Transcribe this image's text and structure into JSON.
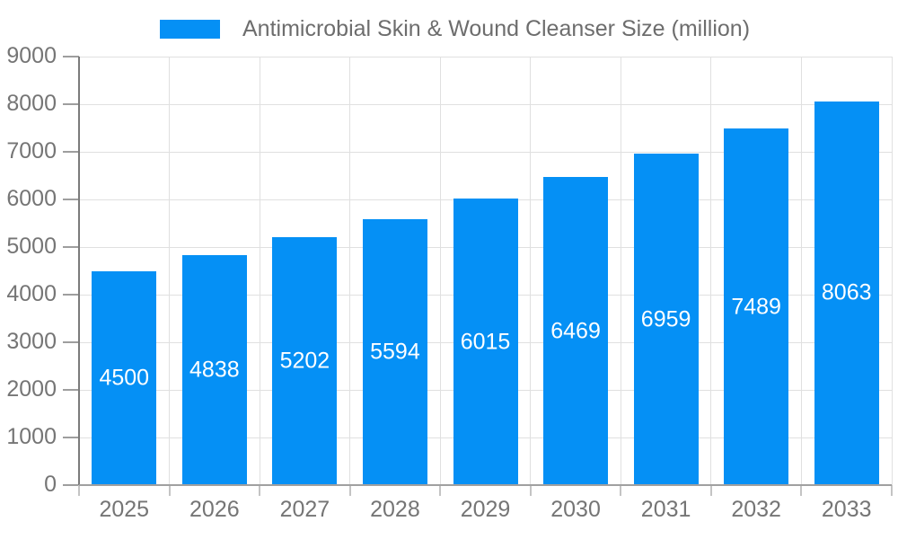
{
  "legend": {
    "label": "Antimicrobial Skin & Wound Cleanser Size (million)",
    "swatch_color": "#0590F5"
  },
  "chart_data": {
    "type": "bar",
    "title": "Antimicrobial Skin & Wound Cleanser Size (million)",
    "categories": [
      "2025",
      "2026",
      "2027",
      "2028",
      "2029",
      "2030",
      "2031",
      "2032",
      "2033"
    ],
    "values": [
      4500,
      4838,
      5202,
      5594,
      6015,
      6469,
      6959,
      7489,
      8063
    ],
    "xlabel": "",
    "ylabel": "",
    "ylim": [
      0,
      9000
    ],
    "ytick_step": 1000,
    "grid": true,
    "legend_position": "top",
    "bar_color": "#0590F5",
    "value_label_color": "#ffffff"
  },
  "colors": {
    "background": "#ffffff",
    "grid": "#e0e0e0",
    "axis_line": "#7b7b7b",
    "baseline": "#a0a0a0",
    "y_tick": "#9e9e9e",
    "x_tick": "#c4c4c4",
    "tick_text": "#757575",
    "title_text": "#6d6d6d"
  }
}
